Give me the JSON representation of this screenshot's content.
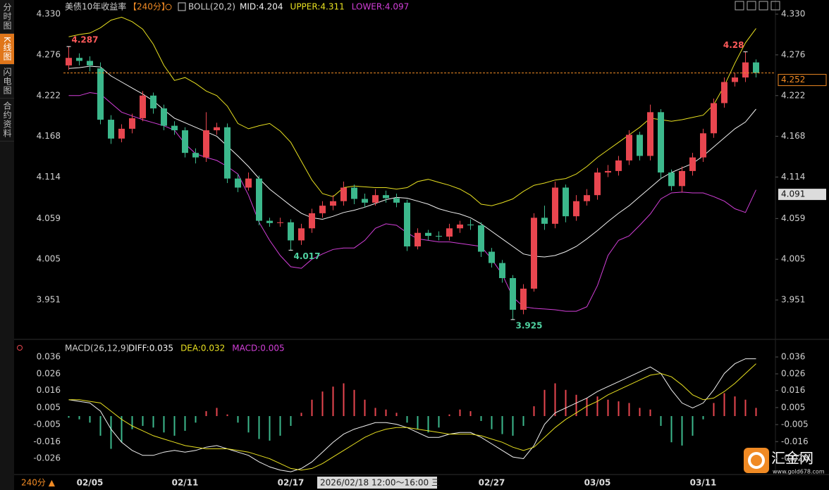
{
  "chart_data": [
    {
      "type": "candlestick",
      "title": "美债10年收益率",
      "period": "【240分】",
      "indicator": "BOLL(20,2)",
      "categories": [
        null,
        null,
        "02/05",
        null,
        null,
        null,
        null,
        null,
        null,
        null,
        null,
        "02/11",
        null,
        null,
        null,
        null,
        null,
        null,
        null,
        null,
        null,
        "02/17",
        null,
        null,
        null,
        null,
        null,
        null,
        null,
        null,
        null,
        null,
        null,
        null,
        null,
        null,
        null,
        null,
        null,
        null,
        "02/27",
        null,
        null,
        null,
        null,
        null,
        null,
        null,
        null,
        null,
        "03/05",
        null,
        null,
        null,
        null,
        null,
        null,
        null,
        null,
        null,
        "03/11",
        null,
        null,
        null,
        null,
        null
      ],
      "open": [
        4.262,
        4.272,
        4.268,
        4.258,
        4.19,
        4.165,
        4.178,
        4.192,
        4.222,
        4.205,
        4.182,
        4.176,
        4.146,
        4.14,
        4.176,
        4.18,
        4.112,
        4.1,
        4.112,
        4.056,
        4.053,
        4.054,
        4.03,
        4.046,
        4.066,
        4.076,
        4.082,
        4.1,
        4.085,
        4.08,
        4.09,
        4.086,
        4.08,
        4.022,
        4.04,
        4.036,
        4.035,
        4.046,
        4.051,
        4.05,
        4.015,
        4.0,
        3.98,
        3.938,
        3.966,
        4.06,
        4.052,
        4.1,
        4.062,
        4.082,
        4.09,
        4.12,
        4.122,
        4.136,
        4.17,
        4.142,
        4.2,
        4.12,
        4.102,
        4.122,
        4.14,
        4.172,
        4.212,
        4.24,
        4.246,
        4.266
      ],
      "high": [
        4.287,
        4.278,
        4.274,
        4.266,
        4.196,
        4.184,
        4.198,
        4.228,
        4.226,
        4.21,
        4.188,
        4.18,
        4.152,
        4.2,
        4.186,
        4.185,
        4.118,
        4.12,
        4.116,
        4.06,
        4.06,
        4.058,
        4.052,
        4.072,
        4.082,
        4.09,
        4.108,
        4.104,
        4.092,
        4.098,
        4.096,
        4.092,
        4.084,
        4.046,
        4.044,
        4.042,
        4.052,
        4.056,
        4.058,
        4.054,
        4.02,
        4.004,
        3.984,
        3.972,
        4.066,
        4.076,
        4.108,
        4.104,
        4.09,
        4.098,
        4.126,
        4.13,
        4.142,
        4.176,
        4.174,
        4.21,
        4.204,
        4.124,
        4.128,
        4.146,
        4.178,
        4.218,
        4.246,
        4.252,
        4.28,
        4.27
      ],
      "low": [
        4.256,
        4.262,
        4.254,
        4.184,
        4.158,
        4.16,
        4.172,
        4.188,
        4.198,
        4.176,
        4.17,
        4.14,
        4.132,
        4.134,
        4.17,
        4.106,
        4.094,
        4.096,
        4.05,
        4.048,
        4.048,
        4.017,
        4.024,
        4.04,
        4.06,
        4.07,
        4.076,
        4.078,
        4.074,
        4.076,
        4.08,
        4.074,
        4.016,
        4.018,
        4.03,
        4.03,
        4.03,
        4.04,
        4.044,
        4.008,
        3.994,
        3.974,
        3.925,
        3.932,
        3.962,
        4.044,
        4.046,
        4.054,
        4.056,
        4.076,
        4.084,
        4.114,
        4.116,
        4.13,
        4.136,
        4.136,
        4.112,
        4.096,
        4.094,
        4.116,
        4.134,
        4.166,
        4.206,
        4.234,
        4.24,
        4.246
      ],
      "close": [
        4.272,
        4.268,
        4.262,
        4.19,
        4.165,
        4.178,
        4.192,
        4.222,
        4.205,
        4.182,
        4.176,
        4.146,
        4.14,
        4.176,
        4.18,
        4.112,
        4.1,
        4.112,
        4.056,
        4.053,
        4.054,
        4.03,
        4.046,
        4.066,
        4.076,
        4.082,
        4.1,
        4.085,
        4.08,
        4.09,
        4.086,
        4.08,
        4.022,
        4.04,
        4.036,
        4.035,
        4.046,
        4.051,
        4.05,
        4.015,
        4.0,
        3.98,
        3.938,
        3.966,
        4.06,
        4.052,
        4.1,
        4.062,
        4.082,
        4.09,
        4.12,
        4.122,
        4.136,
        4.17,
        4.142,
        4.2,
        4.12,
        4.102,
        4.122,
        4.14,
        4.172,
        4.212,
        4.24,
        4.246,
        4.266,
        4.252
      ],
      "up_color": "#e8464f",
      "down_color": "#3cb88c",
      "series": [
        {
          "label": "MID:4.204",
          "color": "#f2f2f2",
          "values": [
            4.258,
            4.259,
            4.261,
            4.26,
            4.248,
            4.24,
            4.232,
            4.224,
            4.215,
            4.203,
            4.192,
            4.186,
            4.18,
            4.174,
            4.168,
            4.155,
            4.142,
            4.128,
            4.112,
            4.098,
            4.087,
            4.076,
            4.066,
            4.06,
            4.058,
            4.062,
            4.067,
            4.07,
            4.074,
            4.079,
            4.084,
            4.087,
            4.086,
            4.082,
            4.078,
            4.072,
            4.068,
            4.065,
            4.06,
            4.052,
            4.042,
            4.032,
            4.022,
            4.012,
            4.009,
            4.008,
            4.01,
            4.015,
            4.022,
            4.032,
            4.043,
            4.055,
            4.066,
            4.076,
            4.088,
            4.1,
            4.112,
            4.12,
            4.126,
            4.132,
            4.142,
            4.154,
            4.166,
            4.178,
            4.187,
            4.204
          ]
        },
        {
          "label": "UPPER:4.311",
          "color": "#e8e020",
          "values": [
            4.3,
            4.303,
            4.305,
            4.312,
            4.322,
            4.326,
            4.32,
            4.31,
            4.29,
            4.262,
            4.242,
            4.246,
            4.238,
            4.228,
            4.222,
            4.208,
            4.185,
            4.178,
            4.182,
            4.185,
            4.175,
            4.16,
            4.135,
            4.11,
            4.092,
            4.088,
            4.1,
            4.102,
            4.101,
            4.1,
            4.1,
            4.098,
            4.1,
            4.108,
            4.111,
            4.107,
            4.103,
            4.098,
            4.09,
            4.078,
            4.076,
            4.08,
            4.085,
            4.095,
            4.103,
            4.106,
            4.11,
            4.112,
            4.118,
            4.128,
            4.14,
            4.15,
            4.16,
            4.17,
            4.18,
            4.192,
            4.19,
            4.188,
            4.19,
            4.193,
            4.196,
            4.21,
            4.235,
            4.265,
            4.292,
            4.311
          ]
        },
        {
          "label": "LOWER:4.097",
          "color": "#d23fd8",
          "values": [
            4.222,
            4.222,
            4.226,
            4.224,
            4.212,
            4.2,
            4.195,
            4.19,
            4.186,
            4.182,
            4.176,
            4.158,
            4.145,
            4.14,
            4.136,
            4.128,
            4.118,
            4.09,
            4.054,
            4.03,
            4.01,
            3.995,
            3.993,
            4.005,
            4.012,
            4.018,
            4.02,
            4.02,
            4.03,
            4.046,
            4.052,
            4.05,
            4.04,
            4.032,
            4.03,
            4.028,
            4.028,
            4.026,
            4.024,
            4.022,
            4.005,
            3.985,
            3.955,
            3.942,
            3.94,
            3.939,
            3.938,
            3.936,
            3.936,
            3.942,
            3.97,
            4.01,
            4.03,
            4.036,
            4.05,
            4.065,
            4.085,
            4.093,
            4.094,
            4.093,
            4.093,
            4.088,
            4.082,
            4.072,
            4.067,
            4.097
          ]
        }
      ],
      "ylim": [
        3.91,
        4.345
      ],
      "yticks": [
        {
          "value": 4.33,
          "label": "4.330"
        },
        4.276,
        4.222,
        4.168,
        4.114,
        4.059,
        4.005,
        3.951
      ],
      "grid": false,
      "last_price": 4.252,
      "last_price_color": "#f08a24",
      "cursor_price": 4.091,
      "annotations": [
        {
          "index": 0,
          "value": 4.287,
          "color": "#ff5a5a"
        },
        {
          "index": 21,
          "value": 4.017,
          "color": "#4fd1a0"
        },
        {
          "index": 42,
          "value": 3.925,
          "color": "#4fd1a0"
        },
        {
          "index": 64,
          "value": 4.28,
          "color": "#ff5a5a"
        }
      ]
    },
    {
      "type": "bar",
      "title": "MACD(26,12,9)",
      "histogram": {
        "label": "MACD:0.005",
        "color": "#d23fd8",
        "up_color": "#e8464f",
        "down_color": "#3cb88c",
        "values": [
          -0.001,
          -0.002,
          -0.004,
          -0.012,
          -0.02,
          -0.016,
          -0.008,
          -0.006,
          -0.007,
          -0.01,
          -0.012,
          -0.009,
          -0.004,
          0.003,
          0.005,
          0.001,
          -0.004,
          -0.01,
          -0.014,
          -0.015,
          -0.012,
          -0.006,
          0.002,
          0.01,
          0.015,
          0.018,
          0.02,
          0.016,
          0.01,
          0.005,
          0.004,
          0.002,
          -0.004,
          -0.008,
          -0.01,
          -0.007,
          0.001,
          0.004,
          0.003,
          -0.003,
          -0.008,
          -0.011,
          -0.012,
          -0.006,
          0.006,
          0.016,
          0.02,
          0.016,
          0.013,
          0.011,
          0.012,
          0.01,
          0.009,
          0.008,
          0.005,
          0.004,
          -0.006,
          -0.016,
          -0.018,
          -0.012,
          -0.002,
          0.008,
          0.014,
          0.012,
          0.01,
          0.005
        ]
      },
      "series": [
        {
          "label": "DIFF:0.035",
          "color": "#f2f2f2",
          "values": [
            0.01,
            0.009,
            0.008,
            0.003,
            -0.008,
            -0.016,
            -0.021,
            -0.024,
            -0.024,
            -0.022,
            -0.021,
            -0.022,
            -0.021,
            -0.019,
            -0.018,
            -0.02,
            -0.022,
            -0.024,
            -0.028,
            -0.031,
            -0.033,
            -0.034,
            -0.032,
            -0.028,
            -0.022,
            -0.016,
            -0.011,
            -0.008,
            -0.006,
            -0.004,
            -0.004,
            -0.005,
            -0.007,
            -0.01,
            -0.013,
            -0.013,
            -0.011,
            -0.01,
            -0.01,
            -0.013,
            -0.017,
            -0.021,
            -0.025,
            -0.026,
            -0.018,
            -0.005,
            0.002,
            0.005,
            0.008,
            0.011,
            0.015,
            0.018,
            0.021,
            0.024,
            0.027,
            0.03,
            0.026,
            0.016,
            0.008,
            0.005,
            0.008,
            0.016,
            0.026,
            0.032,
            0.035,
            0.035
          ]
        },
        {
          "label": "DEA:0.032",
          "color": "#e8e020",
          "values": [
            0.01,
            0.01,
            0.009,
            0.008,
            0.003,
            -0.002,
            -0.006,
            -0.009,
            -0.012,
            -0.014,
            -0.016,
            -0.018,
            -0.019,
            -0.02,
            -0.02,
            -0.02,
            -0.021,
            -0.022,
            -0.024,
            -0.026,
            -0.029,
            -0.032,
            -0.033,
            -0.032,
            -0.029,
            -0.025,
            -0.021,
            -0.017,
            -0.013,
            -0.01,
            -0.008,
            -0.007,
            -0.007,
            -0.008,
            -0.009,
            -0.01,
            -0.011,
            -0.011,
            -0.011,
            -0.012,
            -0.014,
            -0.016,
            -0.019,
            -0.021,
            -0.019,
            -0.013,
            -0.007,
            -0.002,
            0.002,
            0.006,
            0.009,
            0.013,
            0.016,
            0.019,
            0.022,
            0.025,
            0.026,
            0.024,
            0.019,
            0.013,
            0.01,
            0.011,
            0.015,
            0.02,
            0.026,
            0.032
          ]
        }
      ],
      "ylim": [
        -0.035,
        0.039
      ],
      "yticks": [
        {
          "value": 0.0361,
          "label": "0.036"
        },
        {
          "value": 0.0258,
          "label": "0.026"
        },
        {
          "value": 0.0156,
          "label": "0.016"
        },
        {
          "value": 0.0052,
          "label": "0.005"
        },
        {
          "value": -0.0052,
          "label": "-0.005"
        },
        {
          "value": -0.0156,
          "label": "-0.016"
        },
        {
          "value": -0.0258,
          "label": "-0.026"
        }
      ],
      "grid": false
    }
  ],
  "ui": {
    "tabs": [
      "分时图",
      "K线图",
      "闪电图",
      "合约资料"
    ],
    "active_tab": 1,
    "period_button": "240分 ▲",
    "crosshair_time": "2026/02/18 12:00～16:00 三",
    "logo": "汇金网",
    "logo_url": "www.gold678.com"
  }
}
